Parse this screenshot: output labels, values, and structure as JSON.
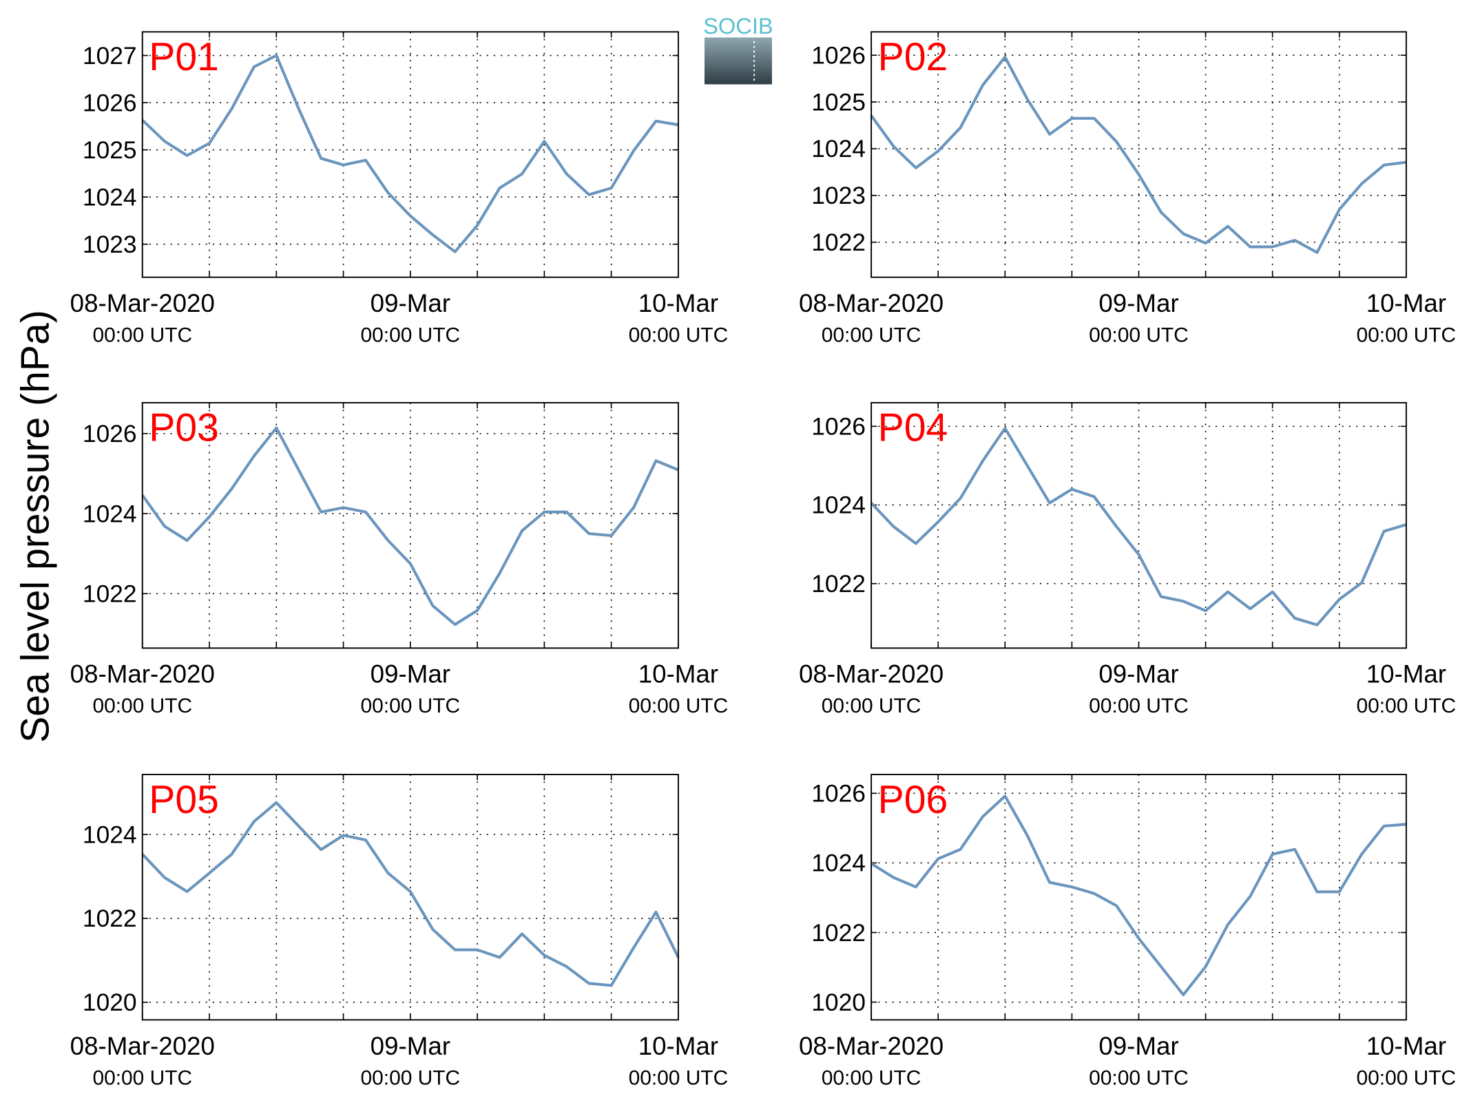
{
  "y_label": "Sea level pressure (hPa)",
  "logo": "SOCIB",
  "chart_data": [
    {
      "type": "line",
      "title": "P01",
      "color": "#6a95bd",
      "x": [
        0,
        2,
        4,
        6,
        8,
        10,
        12,
        14,
        16,
        18,
        20,
        22,
        24,
        26,
        28,
        30,
        32,
        34,
        36,
        38,
        40,
        42,
        44,
        46,
        48
      ],
      "values": [
        1025.63,
        1025.18,
        1024.88,
        1025.14,
        1025.87,
        1026.76,
        1027.0,
        1025.87,
        1024.82,
        1024.68,
        1024.78,
        1024.09,
        1023.6,
        1023.2,
        1022.84,
        1023.4,
        1024.19,
        1024.49,
        1025.18,
        1024.49,
        1024.05,
        1024.19,
        1024.98,
        1025.61,
        1025.53
      ],
      "xlim": [
        0,
        48
      ],
      "xticks": [
        {
          "value": 0,
          "label": "08-Mar-2020"
        },
        {
          "value": 24,
          "label": "09-Mar"
        },
        {
          "value": 48,
          "label": "10-Mar"
        }
      ],
      "xtick_sublabel": "00:00 UTC",
      "xminor_ticks": [
        6,
        12,
        18,
        30,
        36,
        42
      ],
      "ylim": [
        1022.3,
        1027.5
      ],
      "yticks": [
        1023,
        1024,
        1025,
        1026,
        1027
      ],
      "grid": true
    },
    {
      "type": "line",
      "title": "P02",
      "color": "#6a95bd",
      "x": [
        0,
        2,
        4,
        6,
        8,
        10,
        12,
        14,
        16,
        18,
        20,
        22,
        24,
        26,
        28,
        30,
        32,
        34,
        36,
        38,
        40,
        42,
        44,
        46,
        48
      ],
      "values": [
        1024.71,
        1024.05,
        1023.59,
        1023.95,
        1024.45,
        1025.36,
        1025.96,
        1025.06,
        1024.31,
        1024.65,
        1024.65,
        1024.15,
        1023.45,
        1022.64,
        1022.18,
        1021.98,
        1022.34,
        1021.9,
        1021.9,
        1022.04,
        1021.78,
        1022.7,
        1023.25,
        1023.65,
        1023.71
      ],
      "xlim": [
        0,
        48
      ],
      "xticks": [
        {
          "value": 0,
          "label": "08-Mar-2020"
        },
        {
          "value": 24,
          "label": "09-Mar"
        },
        {
          "value": 48,
          "label": "10-Mar"
        }
      ],
      "xtick_sublabel": "00:00 UTC",
      "xminor_ticks": [
        6,
        12,
        18,
        30,
        36,
        42
      ],
      "ylim": [
        1021.25,
        1026.5
      ],
      "yticks": [
        1022,
        1023,
        1024,
        1025,
        1026
      ],
      "grid": true
    },
    {
      "type": "line",
      "title": "P03",
      "color": "#6a95bd",
      "x": [
        0,
        2,
        4,
        6,
        8,
        10,
        12,
        14,
        16,
        18,
        20,
        22,
        24,
        26,
        28,
        30,
        32,
        34,
        36,
        38,
        40,
        42,
        44,
        46,
        48
      ],
      "values": [
        1024.46,
        1023.68,
        1023.33,
        1023.92,
        1024.62,
        1025.44,
        1026.14,
        1025.09,
        1024.04,
        1024.15,
        1024.04,
        1023.33,
        1022.75,
        1021.7,
        1021.23,
        1021.58,
        1022.51,
        1023.57,
        1024.04,
        1024.04,
        1023.5,
        1023.45,
        1024.15,
        1025.32,
        1025.09
      ],
      "xlim": [
        0,
        48
      ],
      "xticks": [
        {
          "value": 0,
          "label": "08-Mar-2020"
        },
        {
          "value": 24,
          "label": "09-Mar"
        },
        {
          "value": 48,
          "label": "10-Mar"
        }
      ],
      "xtick_sublabel": "00:00 UTC",
      "xminor_ticks": [
        6,
        12,
        18,
        30,
        36,
        42
      ],
      "ylim": [
        1020.64,
        1026.77
      ],
      "yticks": [
        1022,
        1024,
        1026
      ],
      "grid": true
    },
    {
      "type": "line",
      "title": "P04",
      "color": "#6a95bd",
      "x": [
        0,
        2,
        4,
        6,
        8,
        10,
        12,
        14,
        16,
        18,
        20,
        22,
        24,
        26,
        28,
        30,
        32,
        34,
        36,
        38,
        40,
        42,
        44,
        46,
        48
      ],
      "values": [
        1024.05,
        1023.45,
        1023.02,
        1023.57,
        1024.17,
        1025.12,
        1025.95,
        1025.0,
        1024.05,
        1024.4,
        1024.21,
        1023.45,
        1022.74,
        1021.67,
        1021.55,
        1021.31,
        1021.79,
        1021.36,
        1021.79,
        1021.12,
        1020.95,
        1021.6,
        1022.02,
        1023.33,
        1023.5
      ],
      "xlim": [
        0,
        48
      ],
      "xticks": [
        {
          "value": 0,
          "label": "08-Mar-2020"
        },
        {
          "value": 24,
          "label": "09-Mar"
        },
        {
          "value": 48,
          "label": "10-Mar"
        }
      ],
      "xtick_sublabel": "00:00 UTC",
      "xminor_ticks": [
        6,
        12,
        18,
        30,
        36,
        42
      ],
      "ylim": [
        1020.36,
        1026.6
      ],
      "yticks": [
        1022,
        1024,
        1026
      ],
      "grid": true
    },
    {
      "type": "line",
      "title": "P05",
      "color": "#6a95bd",
      "x": [
        0,
        2,
        4,
        6,
        8,
        10,
        12,
        14,
        16,
        18,
        20,
        22,
        24,
        26,
        28,
        30,
        32,
        34,
        36,
        38,
        40,
        42,
        44,
        46,
        48
      ],
      "values": [
        1023.53,
        1022.97,
        1022.64,
        1023.08,
        1023.53,
        1024.31,
        1024.76,
        1024.2,
        1023.64,
        1023.98,
        1023.87,
        1023.08,
        1022.64,
        1021.74,
        1021.25,
        1021.25,
        1021.07,
        1021.63,
        1021.12,
        1020.85,
        1020.45,
        1020.4,
        1021.3,
        1022.15,
        1021.07
      ],
      "xlim": [
        0,
        48
      ],
      "xticks": [
        {
          "value": 0,
          "label": "08-Mar-2020"
        },
        {
          "value": 24,
          "label": "09-Mar"
        },
        {
          "value": 48,
          "label": "10-Mar"
        }
      ],
      "xtick_sublabel": "00:00 UTC",
      "xminor_ticks": [
        6,
        12,
        18,
        30,
        36,
        42
      ],
      "ylim": [
        1019.58,
        1025.43
      ],
      "yticks": [
        1020,
        1022,
        1024
      ],
      "grid": true
    },
    {
      "type": "line",
      "title": "P06",
      "color": "#6a95bd",
      "x": [
        0,
        2,
        4,
        6,
        8,
        10,
        12,
        14,
        16,
        18,
        20,
        22,
        24,
        26,
        28,
        30,
        32,
        34,
        36,
        38,
        40,
        42,
        44,
        46,
        48
      ],
      "values": [
        1023.98,
        1023.58,
        1023.31,
        1024.12,
        1024.39,
        1025.33,
        1025.92,
        1024.79,
        1023.44,
        1023.31,
        1023.12,
        1022.77,
        1021.83,
        1021.02,
        1020.21,
        1021.02,
        1022.23,
        1023.04,
        1024.25,
        1024.39,
        1023.17,
        1023.17,
        1024.25,
        1025.06,
        1025.11
      ],
      "xlim": [
        0,
        48
      ],
      "xticks": [
        {
          "value": 0,
          "label": "08-Mar-2020"
        },
        {
          "value": 24,
          "label": "09-Mar"
        },
        {
          "value": 48,
          "label": "10-Mar"
        }
      ],
      "xtick_sublabel": "00:00 UTC",
      "xminor_ticks": [
        6,
        12,
        18,
        30,
        36,
        42
      ],
      "ylim": [
        1019.49,
        1026.54
      ],
      "yticks": [
        1020,
        1022,
        1024,
        1026
      ],
      "grid": true
    }
  ]
}
